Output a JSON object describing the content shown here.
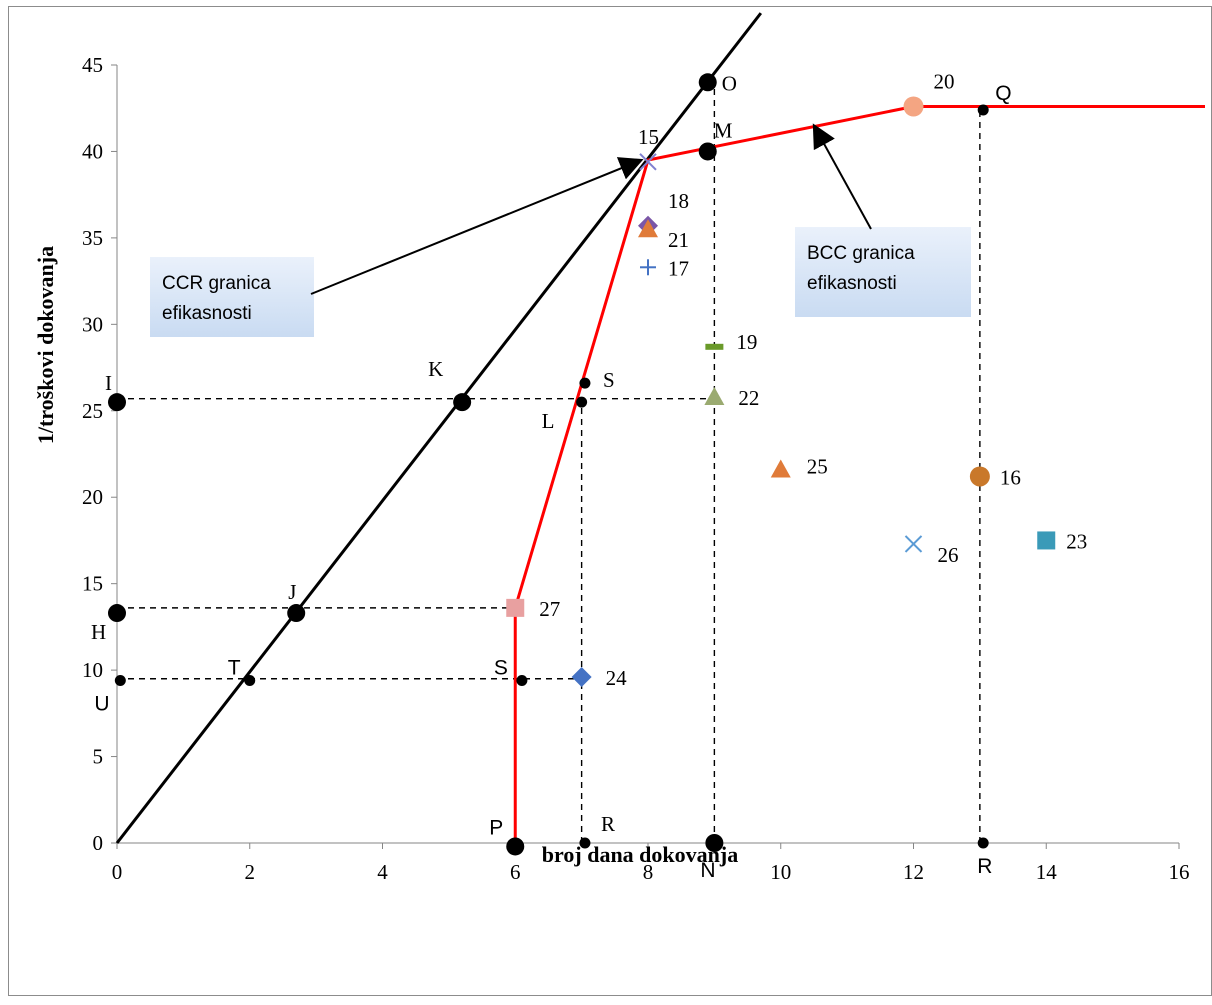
{
  "chart_data": {
    "type": "scatter",
    "title": "",
    "xlabel": "broj dana dokovanja",
    "ylabel": "1/troškovi dokovanja",
    "xlim": [
      0,
      16
    ],
    "ylim": [
      0,
      45
    ],
    "x_ticks": [
      "0",
      "2",
      "4",
      "6",
      "8",
      "10",
      "12",
      "14",
      "16"
    ],
    "y_ticks": [
      "0",
      "5",
      "10",
      "15",
      "20",
      "25",
      "30",
      "35",
      "40",
      "45"
    ],
    "grid": false,
    "legend": "none",
    "ccr_line": {
      "points": [
        [
          0,
          0
        ],
        [
          9.7,
          48
        ]
      ],
      "color": "#000000"
    },
    "bcc_frontier": {
      "points": [
        [
          6,
          0
        ],
        [
          6,
          13.6
        ],
        [
          8,
          39.5
        ],
        [
          12,
          42.6
        ],
        [
          16.4,
          42.6
        ]
      ],
      "color": "#ff0000"
    },
    "dashed_guides": [
      [
        [
          0,
          25.7
        ],
        [
          9,
          25.7
        ]
      ],
      [
        [
          0,
          13.6
        ],
        [
          6,
          13.6
        ]
      ],
      [
        [
          0,
          9.5
        ],
        [
          7,
          9.5
        ]
      ],
      [
        [
          7,
          0
        ],
        [
          7,
          25.7
        ]
      ],
      [
        [
          9,
          0
        ],
        [
          9,
          44
        ]
      ],
      [
        [
          13,
          0
        ],
        [
          13,
          42.6
        ]
      ]
    ],
    "dmus": [
      {
        "label": "15",
        "x": 8,
        "y": 39.4,
        "marker": "x",
        "color": "#8080d0",
        "dx": -10,
        "dy": -18
      },
      {
        "label": "16",
        "x": 13,
        "y": 21.2,
        "marker": "circle",
        "color": "#c9782a",
        "dx": 20,
        "dy": 8
      },
      {
        "label": "17",
        "x": 8,
        "y": 33.3,
        "marker": "plus",
        "color": "#4472c4",
        "dx": 20,
        "dy": 8
      },
      {
        "label": "18",
        "x": 8,
        "y": 35.7,
        "marker": "diamond",
        "color": "#7a56a8",
        "dx": 20,
        "dy": -18
      },
      {
        "label": "19",
        "x": 9,
        "y": 28.7,
        "marker": "dash",
        "color": "#6a9a2a",
        "dx": 22,
        "dy": 2
      },
      {
        "label": "20",
        "x": 12,
        "y": 42.6,
        "marker": "circle",
        "color": "#f4a582",
        "dx": 20,
        "dy": -18
      },
      {
        "label": "21",
        "x": 8,
        "y": 35.5,
        "marker": "triangle",
        "color": "#e07b39",
        "dx": 20,
        "dy": 18
      },
      {
        "label": "22",
        "x": 9,
        "y": 25.8,
        "marker": "triangle",
        "color": "#9aaa70",
        "dx": 24,
        "dy": 8
      },
      {
        "label": "23",
        "x": 14,
        "y": 17.5,
        "marker": "square",
        "color": "#3a9ab8",
        "dx": 20,
        "dy": 8
      },
      {
        "label": "24",
        "x": 7,
        "y": 9.6,
        "marker": "diamond",
        "color": "#4472c4",
        "dx": 24,
        "dy": 8
      },
      {
        "label": "25",
        "x": 10,
        "y": 21.6,
        "marker": "triangle",
        "color": "#e07b39",
        "dx": 26,
        "dy": 4
      },
      {
        "label": "26",
        "x": 12,
        "y": 17.3,
        "marker": "x",
        "color": "#5b9bd5",
        "dx": 24,
        "dy": 18
      },
      {
        "label": "27",
        "x": 6,
        "y": 13.6,
        "marker": "square",
        "color": "#e8a0a0",
        "dx": 24,
        "dy": 8
      }
    ],
    "points": [
      {
        "label": "O",
        "x": 8.9,
        "y": 44,
        "size": "large",
        "dx": 14,
        "dy": 8,
        "font": "serif"
      },
      {
        "label": "M",
        "x": 8.9,
        "y": 40,
        "size": "large",
        "dx": 6,
        "dy": -14,
        "font": "serif"
      },
      {
        "label": "Q",
        "x": 13.05,
        "y": 42.4,
        "size": "small",
        "dx": 12,
        "dy": -10,
        "font": "sans"
      },
      {
        "label": "I",
        "x": 0,
        "y": 25.5,
        "size": "large",
        "dx": -12,
        "dy": -12,
        "font": "serif"
      },
      {
        "label": "K",
        "x": 5.2,
        "y": 25.5,
        "size": "large",
        "dx": -34,
        "dy": -26,
        "font": "serif"
      },
      {
        "label": "S",
        "x": 7.05,
        "y": 26.6,
        "size": "small",
        "dx": 18,
        "dy": 4,
        "font": "serif"
      },
      {
        "label": "L",
        "x": 7,
        "y": 25.5,
        "size": "small",
        "dx": -40,
        "dy": 26,
        "font": "serif"
      },
      {
        "label": "H",
        "x": 0,
        "y": 13.3,
        "size": "large",
        "dx": -26,
        "dy": 26,
        "font": "serif"
      },
      {
        "label": "J",
        "x": 2.7,
        "y": 13.3,
        "size": "large",
        "dx": -8,
        "dy": -14,
        "font": "serif"
      },
      {
        "label": "T",
        "x": 2,
        "y": 9.4,
        "size": "small",
        "dx": -22,
        "dy": -6,
        "font": "sans"
      },
      {
        "label": "U",
        "x": 0.05,
        "y": 9.4,
        "size": "small",
        "dx": -26,
        "dy": 30,
        "font": "sans"
      },
      {
        "label": "S",
        "x": 6.1,
        "y": 9.4,
        "size": "small",
        "dx": -28,
        "dy": -6,
        "font": "sans"
      },
      {
        "label": "P",
        "x": 6,
        "y": -0.2,
        "size": "large",
        "dx": -26,
        "dy": -12,
        "font": "sans"
      },
      {
        "label": "R",
        "x": 7.05,
        "y": 0,
        "size": "small",
        "dx": 16,
        "dy": -12,
        "font": "serif"
      },
      {
        "label": "N",
        "x": 9,
        "y": 0,
        "size": "large",
        "dx": -14,
        "dy": 34,
        "font": "sans"
      },
      {
        "label": "R",
        "x": 13.05,
        "y": 0,
        "size": "small",
        "dx": -6,
        "dy": 30,
        "font": "sans"
      }
    ],
    "annotations": [
      {
        "lines": [
          "CCR granica",
          "efikasnosti"
        ],
        "arrow_to": [
          7.9,
          39.5
        ],
        "target": "ccr"
      },
      {
        "lines": [
          "BCC granica",
          "efikasnosti"
        ],
        "arrow_to": [
          10.5,
          41.5
        ],
        "target": "bcc"
      }
    ]
  }
}
